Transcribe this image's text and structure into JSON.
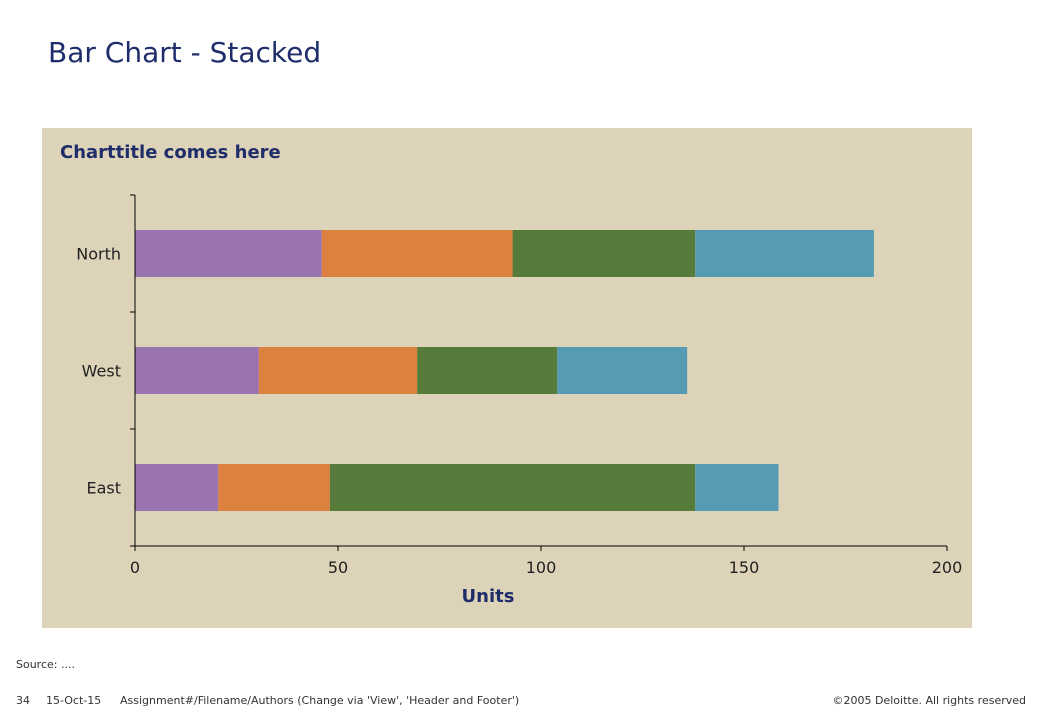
{
  "slide": {
    "title": "Bar Chart - Stacked",
    "source": "Source: ....",
    "footer": {
      "page": "34",
      "date": "15-Oct-15",
      "assignment": "Assignment#/Filename/Authors (Change via 'View', 'Header and Footer')",
      "copyright": "©2005 Deloitte. All rights reserved"
    }
  },
  "chart_data": {
    "type": "bar",
    "orientation": "horizontal",
    "stacked": true,
    "title": "Charttitle comes here",
    "xlabel": "Units",
    "ylabel": "",
    "xlim": [
      0,
      200
    ],
    "xticks": [
      0,
      50,
      100,
      150,
      200
    ],
    "categories": [
      "North",
      "West",
      "East"
    ],
    "series": [
      {
        "values": [
          46,
          30.5,
          20.5
        ],
        "color": "#9a74b0"
      },
      {
        "values": [
          47,
          39,
          27.5
        ],
        "color": "#dc8240"
      },
      {
        "values": [
          45,
          34.5,
          90
        ],
        "color": "#567b3a"
      },
      {
        "values": [
          44,
          32,
          20.5
        ],
        "color": "#559bb4"
      }
    ],
    "grid": false,
    "legend": "none",
    "background": "#ddd3b8"
  }
}
